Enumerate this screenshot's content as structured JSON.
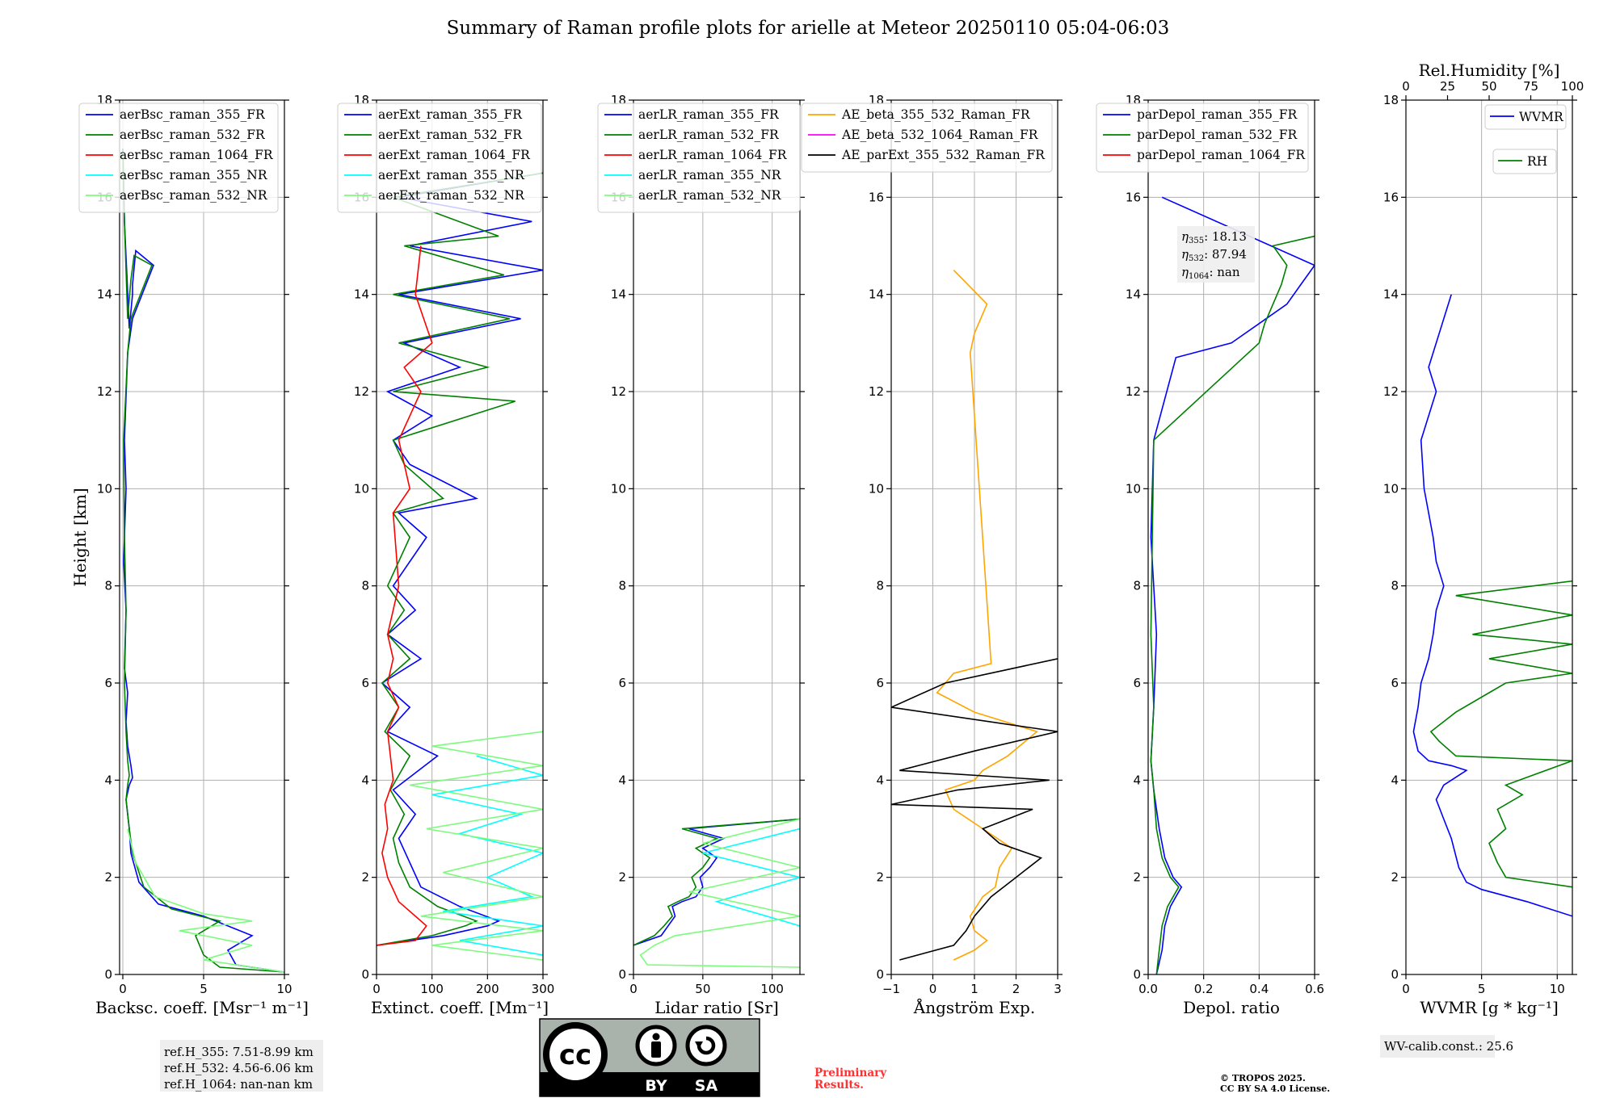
{
  "title": "Summary of Raman profile plots for arielle at Meteor 20250110 05:04-06:03",
  "chart_data": [
    {
      "type": "line",
      "panel": "backscatter",
      "xlabel": "Backsc. coeff. [Msr⁻¹ m⁻¹]",
      "ylabel": "Height [km]",
      "xlim": [
        -0.2,
        10
      ],
      "ylim": [
        0,
        18
      ],
      "xticks": [
        "0",
        "5",
        "10"
      ],
      "yticks": [
        "0",
        "2",
        "4",
        "6",
        "8",
        "10",
        "12",
        "14",
        "16",
        "18"
      ],
      "grid": true,
      "legend": "top-left",
      "series": [
        {
          "name": "aerBsc_raman_355_FR",
          "color": "#0000ff",
          "x": [
            10,
            7,
            6.5,
            8,
            5,
            2.2,
            1,
            0.5,
            0.4,
            0.2,
            0.4,
            0.6,
            0.5,
            0.3,
            0.2,
            0.3,
            0.1,
            0.2,
            0.05,
            0.2,
            0.1,
            0.3,
            0.6,
            1.9,
            0.8,
            0.6,
            0.6,
            0.4,
            0.1,
            0
          ],
          "y": [
            0.05,
            0.2,
            0.5,
            0.8,
            1.2,
            1.45,
            1.9,
            2.5,
            3,
            3.6,
            3.9,
            4.05,
            4.3,
            4.7,
            5.2,
            5.8,
            6.3,
            7.5,
            8.5,
            10,
            11,
            12.8,
            13.5,
            14.6,
            14.9,
            14.2,
            14,
            13.3,
            15.5,
            17
          ]
        },
        {
          "name": "aerBsc_raman_532_FR",
          "color": "#008000",
          "x": [
            10,
            6,
            5,
            4.5,
            6,
            3,
            1.3,
            0.6,
            0.4,
            0.2,
            0.3,
            0.4,
            0.3,
            0.2,
            0.1,
            0.2,
            0.1,
            0.05,
            0.3,
            0.5,
            1.8,
            0.7,
            0.5,
            0.3,
            0.1,
            0
          ],
          "y": [
            0.05,
            0.15,
            0.4,
            0.8,
            1.1,
            1.35,
            1.8,
            2.5,
            3,
            3.6,
            3.9,
            4.1,
            4.4,
            5,
            6,
            7.5,
            9,
            11,
            12.8,
            13.5,
            14.6,
            14.8,
            14.3,
            13.5,
            15.5,
            17
          ]
        },
        {
          "name": "aerBsc_raman_1064_FR",
          "color": "#ff0000",
          "x": [],
          "y": []
        },
        {
          "name": "aerBsc_raman_355_NR",
          "color": "#00ffff",
          "x": [],
          "y": []
        },
        {
          "name": "aerBsc_raman_532_NR",
          "color": "#7cfc7c",
          "x": [
            10,
            5,
            8,
            3.5,
            8,
            5,
            2,
            0.8,
            0.3
          ],
          "y": [
            0.05,
            0.3,
            0.6,
            0.9,
            1.1,
            1.25,
            1.6,
            2.3,
            3
          ]
        }
      ],
      "annotation": {
        "ref_h_355": "ref.H_355: 7.51-8.99 km",
        "ref_h_532": "ref.H_532: 4.56-6.06 km",
        "ref_h_1064": "ref.H_1064: nan-nan km"
      }
    },
    {
      "type": "line",
      "panel": "extinction",
      "xlabel": "Extinct. coeff. [Mm⁻¹]",
      "xlim": [
        0,
        300
      ],
      "ylim": [
        0,
        18
      ],
      "xticks": [
        "0",
        "100",
        "200",
        "300"
      ],
      "yticks": [
        "0",
        "2",
        "4",
        "6",
        "8",
        "10",
        "12",
        "14",
        "16",
        "18"
      ],
      "grid": true,
      "legend": "top-left",
      "series": [
        {
          "name": "aerExt_raman_355_FR",
          "color": "#0000ff",
          "x": [
            0,
            120,
            200,
            220,
            150,
            80,
            60,
            40,
            70,
            30,
            110,
            20,
            60,
            10,
            80,
            20,
            70,
            30,
            90,
            40,
            180,
            60,
            30,
            100,
            20,
            150,
            50,
            260,
            40,
            300,
            60,
            280,
            40,
            300
          ],
          "y": [
            0.6,
            0.8,
            1.0,
            1.1,
            1.4,
            1.8,
            2.3,
            2.8,
            3.3,
            3.8,
            4.5,
            5.0,
            5.5,
            6.0,
            6.5,
            7.0,
            7.5,
            8.0,
            9.0,
            9.5,
            9.8,
            10.5,
            11.0,
            11.5,
            12.0,
            12.5,
            13.0,
            13.5,
            14.0,
            14.5,
            15.0,
            15.5,
            16.0,
            16.5
          ]
        },
        {
          "name": "aerExt_raman_532_FR",
          "color": "#008000",
          "x": [
            0,
            100,
            160,
            180,
            110,
            60,
            40,
            30,
            50,
            25,
            60,
            15,
            40,
            10,
            60,
            20,
            50,
            20,
            60,
            30,
            120,
            50,
            30,
            250,
            30,
            200,
            40,
            240,
            30,
            230,
            50,
            220,
            30,
            300
          ],
          "y": [
            0.6,
            0.8,
            1.0,
            1.1,
            1.4,
            1.8,
            2.3,
            2.8,
            3.3,
            3.8,
            4.5,
            5.0,
            5.5,
            6.0,
            6.5,
            7.0,
            7.5,
            8.0,
            9.0,
            9.5,
            9.8,
            10.5,
            11.0,
            11.8,
            12.0,
            12.5,
            13.0,
            13.5,
            14.0,
            14.4,
            15.0,
            15.2,
            16.0,
            16.5
          ]
        },
        {
          "name": "aerExt_raman_1064_FR",
          "color": "#ff0000",
          "x": [
            0,
            70,
            90,
            40,
            20,
            10,
            20,
            15,
            30,
            20,
            40,
            20,
            30,
            20,
            40,
            30,
            60,
            40,
            80,
            50,
            100,
            70,
            80
          ],
          "y": [
            0.6,
            0.7,
            1.0,
            1.5,
            2.0,
            2.5,
            3.0,
            3.5,
            4.0,
            5.0,
            5.5,
            6.0,
            6.5,
            7.0,
            8.0,
            9.5,
            10.0,
            11.0,
            12.0,
            12.5,
            13.0,
            14.0,
            15.0
          ]
        },
        {
          "name": "aerExt_raman_355_NR",
          "color": "#00ffff",
          "x": [
            300,
            150,
            300,
            120,
            280,
            200,
            300,
            150,
            260,
            100,
            300,
            180
          ],
          "y": [
            0.4,
            0.7,
            1.0,
            1.3,
            1.6,
            2.0,
            2.5,
            2.9,
            3.3,
            3.7,
            4.1,
            4.5
          ]
        },
        {
          "name": "aerExt_raman_532_NR",
          "color": "#7cfc7c",
          "x": [
            300,
            100,
            300,
            80,
            300,
            120,
            300,
            90,
            300,
            60,
            300,
            100,
            300
          ],
          "y": [
            0.3,
            0.6,
            0.9,
            1.2,
            1.6,
            2.1,
            2.6,
            3.0,
            3.4,
            3.9,
            4.3,
            4.7,
            5.0
          ]
        }
      ]
    },
    {
      "type": "line",
      "panel": "lidar-ratio",
      "xlabel": "Lidar ratio [Sr]",
      "xlim": [
        0,
        120
      ],
      "ylim": [
        0,
        18
      ],
      "xticks": [
        "0",
        "50",
        "100"
      ],
      "yticks": [
        "0",
        "2",
        "4",
        "6",
        "8",
        "10",
        "12",
        "14",
        "16",
        "18"
      ],
      "grid": true,
      "legend": "top-left",
      "series": [
        {
          "name": "aerLR_raman_355_FR",
          "color": "#0000ff",
          "x": [
            0,
            20,
            25,
            30,
            28,
            35,
            45,
            50,
            48,
            55,
            60,
            50,
            65,
            40,
            120
          ],
          "y": [
            0.6,
            0.8,
            1.0,
            1.2,
            1.4,
            1.5,
            1.6,
            1.8,
            2.0,
            2.2,
            2.4,
            2.6,
            2.8,
            3.0,
            3.2
          ]
        },
        {
          "name": "aerLR_raman_532_FR",
          "color": "#008000",
          "x": [
            0,
            15,
            22,
            28,
            25,
            32,
            40,
            45,
            42,
            50,
            55,
            45,
            60,
            35,
            120
          ],
          "y": [
            0.6,
            0.8,
            1.0,
            1.2,
            1.4,
            1.5,
            1.6,
            1.8,
            2.0,
            2.2,
            2.4,
            2.6,
            2.8,
            3.0,
            3.2
          ]
        },
        {
          "name": "aerLR_raman_1064_FR",
          "color": "#ff0000",
          "x": [],
          "y": []
        },
        {
          "name": "aerLR_raman_355_NR",
          "color": "#00ffff",
          "x": [
            120,
            60,
            120,
            50,
            120
          ],
          "y": [
            1.0,
            1.5,
            2.0,
            2.5,
            3.0
          ]
        },
        {
          "name": "aerLR_raman_532_NR",
          "color": "#7cfc7c",
          "x": [
            120,
            10,
            5,
            15,
            30,
            120,
            40,
            120,
            50,
            120
          ],
          "y": [
            0.15,
            0.2,
            0.4,
            0.6,
            0.8,
            1.2,
            1.7,
            2.2,
            2.7,
            3.2
          ]
        }
      ]
    },
    {
      "type": "line",
      "panel": "angstrom",
      "xlabel": "Ångström Exp.",
      "xlim": [
        -1,
        3
      ],
      "ylim": [
        0,
        18
      ],
      "xticks": [
        "−1",
        "0",
        "1",
        "2",
        "3"
      ],
      "yticks": [
        "0",
        "2",
        "4",
        "6",
        "8",
        "10",
        "12",
        "14",
        "16",
        "18"
      ],
      "grid": true,
      "legend": "top-center",
      "series": [
        {
          "name": "AE_beta_355_532_Raman_FR",
          "color": "#ffa500",
          "x": [
            0.5,
            1.0,
            1.3,
            1.0,
            0.9,
            1.2,
            1.5,
            1.6,
            1.9,
            1.2,
            0.5,
            0.3,
            1.0,
            1.2,
            1.8,
            2.5,
            1.0,
            0.1,
            0.5,
            1.4,
            0.9,
            1.0,
            1.3,
            0.5
          ],
          "y": [
            0.3,
            0.5,
            0.7,
            0.9,
            1.2,
            1.6,
            1.8,
            2.2,
            2.6,
            3.0,
            3.4,
            3.8,
            4.0,
            4.2,
            4.5,
            5.0,
            5.4,
            5.8,
            6.2,
            6.4,
            12.8,
            13.2,
            13.8,
            14.5
          ]
        },
        {
          "name": "AE_beta_532_1064_Raman_FR",
          "color": "#ff00ff",
          "x": [],
          "y": []
        },
        {
          "name": "AE_parExt_355_532_Raman_FR",
          "color": "#000000",
          "x": [
            -0.8,
            0.5,
            0.8,
            1.0,
            1.4,
            2.0,
            2.6,
            1.6,
            1.2,
            2.4,
            -1,
            0.6,
            2.8,
            -0.8,
            1.0,
            3.0,
            -1,
            0.3,
            3.0
          ],
          "y": [
            0.3,
            0.6,
            0.9,
            1.2,
            1.6,
            2.0,
            2.4,
            2.7,
            3.0,
            3.4,
            3.5,
            3.8,
            4.0,
            4.2,
            4.6,
            5.0,
            5.5,
            6.0,
            6.5
          ]
        }
      ]
    },
    {
      "type": "line",
      "panel": "depolarization",
      "xlabel": "Depol. ratio",
      "xlim": [
        0,
        0.6
      ],
      "ylim": [
        0,
        18
      ],
      "xticks": [
        "0.0",
        "0.2",
        "0.4",
        "0.6"
      ],
      "yticks": [
        "0",
        "2",
        "4",
        "6",
        "8",
        "10",
        "12",
        "14",
        "16",
        "18"
      ],
      "grid": true,
      "legend": "top-left",
      "series": [
        {
          "name": "parDepol_raman_355_FR",
          "color": "#0000ff",
          "x": [
            0.03,
            0.05,
            0.06,
            0.08,
            0.1,
            0.12,
            0.09,
            0.06,
            0.04,
            0.02,
            0.01,
            0.02,
            0.03,
            0.01,
            0.02,
            0.1,
            0.3,
            0.4,
            0.5,
            0.55,
            0.6,
            0.05
          ],
          "y": [
            0,
            0.5,
            1.0,
            1.4,
            1.6,
            1.8,
            2.0,
            2.4,
            3.0,
            3.8,
            4.4,
            5.5,
            7.0,
            9.0,
            11.0,
            12.7,
            13.0,
            13.4,
            13.8,
            14.2,
            14.6,
            16.0
          ]
        },
        {
          "name": "parDepol_raman_532_FR",
          "color": "#008000",
          "x": [
            0.03,
            0.04,
            0.05,
            0.07,
            0.09,
            0.11,
            0.08,
            0.05,
            0.03,
            0.02,
            0.01,
            0.02,
            0.01,
            0.02,
            0.4,
            0.42,
            0.45,
            0.48,
            0.5,
            0.45,
            0.6
          ],
          "y": [
            0,
            0.5,
            1.0,
            1.4,
            1.6,
            1.8,
            2.0,
            2.4,
            3.0,
            3.8,
            4.4,
            5.5,
            7.0,
            11.0,
            13.0,
            13.4,
            13.8,
            14.2,
            14.6,
            15.0,
            15.2
          ]
        },
        {
          "name": "parDepol_raman_1064_FR",
          "color": "#ff0000",
          "x": [],
          "y": []
        }
      ],
      "annotation": {
        "eta_355": "18.13",
        "eta_532": "87.94",
        "eta_1064": "nan"
      }
    },
    {
      "type": "line",
      "panel": "water-vapor",
      "xlabel": "WVMR [g * kg⁻¹]",
      "xlabel_top": "Rel.Humidity [%]",
      "xlim": [
        0,
        11
      ],
      "xlim_top": [
        0,
        100
      ],
      "ylim": [
        0,
        18
      ],
      "xticks": [
        "0",
        "5",
        "10"
      ],
      "xticks_top": [
        "0",
        "25",
        "50",
        "75",
        "100"
      ],
      "yticks": [
        "0",
        "2",
        "4",
        "6",
        "8",
        "10",
        "12",
        "14",
        "16",
        "18"
      ],
      "grid": true,
      "legend": "top-right",
      "series": [
        {
          "name": "WVMR",
          "color": "#0000ff",
          "x": [
            11,
            8,
            5,
            4,
            3.5,
            3,
            2.5,
            2,
            2.5,
            3.5,
            4,
            3,
            1.5,
            0.8,
            0.5,
            0.8,
            1.0,
            1.5,
            1.8,
            2,
            2.5,
            2,
            1.8,
            1.5,
            1.2,
            1.0,
            2,
            1.5,
            2,
            3
          ],
          "y": [
            1.2,
            1.5,
            1.75,
            1.9,
            2.2,
            2.8,
            3.2,
            3.6,
            3.9,
            4.1,
            4.2,
            4.3,
            4.4,
            4.6,
            5.0,
            5.5,
            6.0,
            6.5,
            7.0,
            7.5,
            8.0,
            8.5,
            9.0,
            9.5,
            10.0,
            11.0,
            12.0,
            12.5,
            13.0,
            14.0
          ]
        },
        {
          "name": "RH",
          "color": "#008000",
          "x_rh": [
            100,
            60,
            55,
            50,
            60,
            55,
            70,
            60,
            100,
            30,
            20,
            15,
            30,
            50,
            60,
            100,
            50,
            100,
            40,
            100,
            30,
            100
          ],
          "y": [
            1.8,
            2.0,
            2.3,
            2.7,
            3.0,
            3.4,
            3.7,
            3.9,
            4.4,
            4.5,
            4.8,
            5.0,
            5.4,
            5.8,
            6.0,
            6.2,
            6.5,
            6.8,
            7.0,
            7.4,
            7.8,
            8.1
          ]
        }
      ],
      "annotation": {
        "wv_calib": "WV-calib.const.: 25.6"
      }
    }
  ],
  "footer": {
    "license_badge": {
      "cc": "cc",
      "by": "BY",
      "sa": "SA"
    },
    "preliminary_line1": "Preliminary",
    "preliminary_line2": "Results.",
    "copyright_line1": "© TROPOS 2025.",
    "copyright_line2": "CC BY SA 4.0 License."
  }
}
